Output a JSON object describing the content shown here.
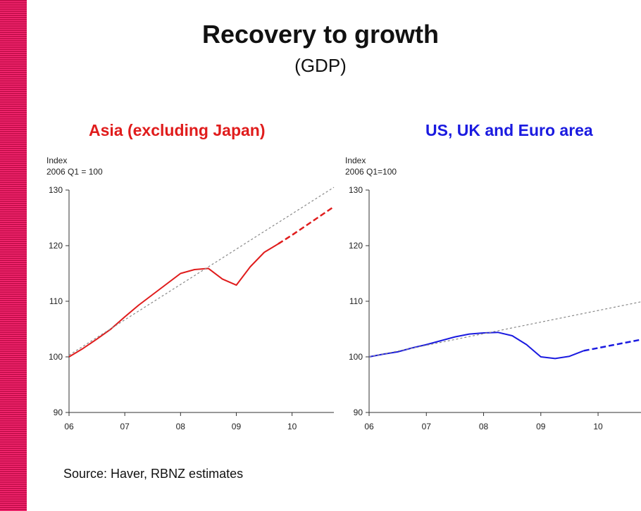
{
  "page": {
    "title": "Recovery to growth",
    "subtitle": "(GDP)",
    "source": "Source: Haver, RBNZ estimates",
    "accent_stripe_color": "#e0185f"
  },
  "chart_data": [
    {
      "type": "line",
      "title": "Asia (excluding Japan)",
      "title_color": "#e01c1c",
      "ylabel_line1": "Index",
      "ylabel_line2": "2006 Q1 = 100",
      "ylim": [
        90,
        130
      ],
      "yticks": [
        90,
        100,
        110,
        120,
        130
      ],
      "xlim": [
        2006.0,
        2010.75
      ],
      "xticks": [
        {
          "label": "06",
          "value": 2006.0
        },
        {
          "label": "07",
          "value": 2007.0
        },
        {
          "label": "08",
          "value": 2008.0
        },
        {
          "label": "09",
          "value": 2009.0
        },
        {
          "label": "10",
          "value": 2010.0
        }
      ],
      "series": [
        {
          "style": "solid",
          "color": "#e01c1c",
          "points": [
            [
              2006.0,
              100.0
            ],
            [
              2006.25,
              101.5
            ],
            [
              2006.5,
              103.2
            ],
            [
              2006.75,
              105.0
            ],
            [
              2007.0,
              107.2
            ],
            [
              2007.25,
              109.3
            ],
            [
              2007.5,
              111.2
            ],
            [
              2007.75,
              113.1
            ],
            [
              2008.0,
              115.0
            ],
            [
              2008.25,
              115.7
            ],
            [
              2008.5,
              115.9
            ],
            [
              2008.75,
              114.0
            ],
            [
              2009.0,
              112.9
            ],
            [
              2009.25,
              116.2
            ],
            [
              2009.5,
              118.8
            ],
            [
              2009.75,
              120.3
            ]
          ]
        },
        {
          "style": "dashed",
          "color": "#e01c1c",
          "points": [
            [
              2009.75,
              120.3
            ],
            [
              2010.0,
              121.9
            ],
            [
              2010.25,
              123.6
            ],
            [
              2010.5,
              125.3
            ],
            [
              2010.75,
              127.0
            ]
          ]
        },
        {
          "style": "trend",
          "color": "#888888",
          "points": [
            [
              2006.0,
              100.3
            ],
            [
              2010.75,
              130.5
            ]
          ]
        }
      ]
    },
    {
      "type": "line",
      "title": "US, UK and Euro area",
      "title_color": "#1a1ae0",
      "ylabel_line1": "Index",
      "ylabel_line2": "2006 Q1=100",
      "ylim": [
        90,
        130
      ],
      "yticks": [
        90,
        100,
        110,
        120,
        130
      ],
      "xlim": [
        2006.0,
        2010.75
      ],
      "xticks": [
        {
          "label": "06",
          "value": 2006.0
        },
        {
          "label": "07",
          "value": 2007.0
        },
        {
          "label": "08",
          "value": 2008.0
        },
        {
          "label": "09",
          "value": 2009.0
        },
        {
          "label": "10",
          "value": 2010.0
        }
      ],
      "series": [
        {
          "style": "solid",
          "color": "#1a1ae0",
          "points": [
            [
              2006.0,
              100.0
            ],
            [
              2006.25,
              100.5
            ],
            [
              2006.5,
              100.9
            ],
            [
              2006.75,
              101.6
            ],
            [
              2007.0,
              102.2
            ],
            [
              2007.25,
              102.9
            ],
            [
              2007.5,
              103.6
            ],
            [
              2007.75,
              104.1
            ],
            [
              2008.0,
              104.3
            ],
            [
              2008.25,
              104.4
            ],
            [
              2008.5,
              103.8
            ],
            [
              2008.75,
              102.2
            ],
            [
              2009.0,
              100.0
            ],
            [
              2009.25,
              99.7
            ],
            [
              2009.5,
              100.1
            ],
            [
              2009.75,
              101.1
            ]
          ]
        },
        {
          "style": "dashed",
          "color": "#1a1ae0",
          "points": [
            [
              2009.75,
              101.1
            ],
            [
              2010.0,
              101.6
            ],
            [
              2010.25,
              102.1
            ],
            [
              2010.5,
              102.6
            ],
            [
              2010.75,
              103.1
            ]
          ]
        },
        {
          "style": "trend",
          "color": "#888888",
          "points": [
            [
              2006.0,
              100.0
            ],
            [
              2010.75,
              109.9
            ]
          ]
        }
      ]
    }
  ]
}
